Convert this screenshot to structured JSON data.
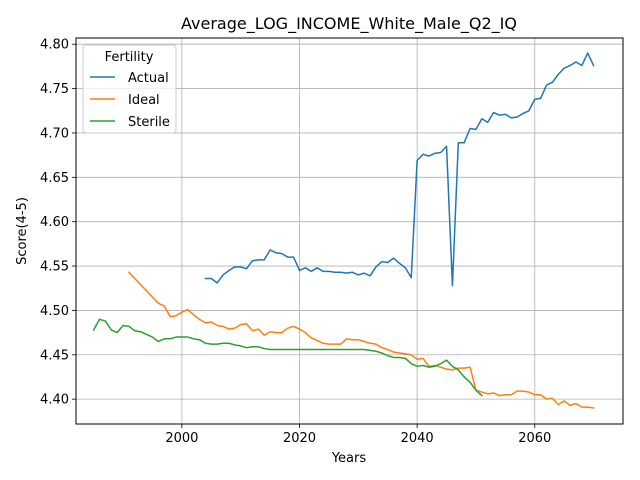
{
  "chart_data": {
    "type": "line",
    "title": "Average_LOG_INCOME_White_Male_Q2_IQ",
    "xlabel": "Years",
    "ylabel": "Score(4-5)",
    "xlim": [
      1982,
      2075
    ],
    "ylim": [
      4.372,
      4.807
    ],
    "xticks": [
      2000,
      2020,
      2040,
      2060
    ],
    "yticks": [
      4.4,
      4.45,
      4.5,
      4.55,
      4.6,
      4.65,
      4.7,
      4.75,
      4.8
    ],
    "ytick_labels": [
      "4.40",
      "4.45",
      "4.50",
      "4.55",
      "4.60",
      "4.65",
      "4.70",
      "4.75",
      "4.80"
    ],
    "grid": true,
    "legend": {
      "title": "Fertility",
      "position": "top-left"
    },
    "series": [
      {
        "name": "Actual",
        "color": "#1f77b4",
        "x": [
          2004,
          2005,
          2006,
          2007,
          2008,
          2009,
          2010,
          2011,
          2012,
          2013,
          2014,
          2015,
          2016,
          2017,
          2018,
          2019,
          2020,
          2021,
          2022,
          2023,
          2024,
          2025,
          2026,
          2027,
          2028,
          2029,
          2030,
          2031,
          2032,
          2033,
          2034,
          2035,
          2036,
          2037,
          2038,
          2039,
          2040,
          2041,
          2042,
          2043,
          2044,
          2045,
          2046,
          2047,
          2048,
          2049,
          2050,
          2051,
          2052,
          2053,
          2054,
          2055,
          2056,
          2057,
          2058,
          2059,
          2060,
          2061,
          2062,
          2063,
          2064,
          2065,
          2066,
          2067,
          2068,
          2069,
          2070
        ],
        "y": [
          4.536,
          4.536,
          4.531,
          4.54,
          4.545,
          4.549,
          4.549,
          4.547,
          4.556,
          4.557,
          4.557,
          4.568,
          4.565,
          4.564,
          4.56,
          4.56,
          4.545,
          4.548,
          4.544,
          4.548,
          4.544,
          4.544,
          4.543,
          4.543,
          4.542,
          4.543,
          4.54,
          4.542,
          4.539,
          4.549,
          4.555,
          4.554,
          4.559,
          4.553,
          4.548,
          4.537,
          4.669,
          4.676,
          4.674,
          4.677,
          4.678,
          4.685,
          4.528,
          4.689,
          4.689,
          4.705,
          4.704,
          4.716,
          4.712,
          4.723,
          4.72,
          4.721,
          4.717,
          4.718,
          4.722,
          4.725,
          4.738,
          4.739,
          4.754,
          4.757,
          4.766,
          4.773,
          4.776,
          4.78,
          4.776,
          4.79,
          4.776
        ]
      },
      {
        "name": "Ideal",
        "color": "#ff7f0e",
        "x": [
          1991,
          1992,
          1993,
          1994,
          1995,
          1996,
          1997,
          1998,
          1999,
          2000,
          2001,
          2002,
          2003,
          2004,
          2005,
          2006,
          2007,
          2008,
          2009,
          2010,
          2011,
          2012,
          2013,
          2014,
          2015,
          2016,
          2017,
          2018,
          2019,
          2020,
          2021,
          2022,
          2023,
          2024,
          2025,
          2026,
          2027,
          2028,
          2029,
          2030,
          2031,
          2032,
          2033,
          2034,
          2035,
          2036,
          2037,
          2038,
          2039,
          2040,
          2041,
          2042,
          2043,
          2044,
          2045,
          2046,
          2047,
          2048,
          2049,
          2050,
          2051,
          2052,
          2053,
          2054,
          2055,
          2056,
          2057,
          2058,
          2059,
          2060,
          2061,
          2062,
          2063,
          2064,
          2065,
          2066,
          2067,
          2068,
          2069,
          2070
        ],
        "y": [
          4.543,
          4.536,
          4.529,
          4.522,
          4.515,
          4.508,
          4.505,
          4.493,
          4.494,
          4.498,
          4.501,
          4.495,
          4.49,
          4.486,
          4.487,
          4.483,
          4.482,
          4.479,
          4.48,
          4.484,
          4.485,
          4.477,
          4.479,
          4.472,
          4.476,
          4.475,
          4.475,
          4.48,
          4.482,
          4.479,
          4.475,
          4.469,
          4.466,
          4.463,
          4.462,
          4.462,
          4.462,
          4.468,
          4.467,
          4.467,
          4.465,
          4.463,
          4.462,
          4.458,
          4.456,
          4.453,
          4.452,
          4.451,
          4.45,
          4.445,
          4.446,
          4.437,
          4.438,
          4.436,
          4.434,
          4.433,
          4.435,
          4.435,
          4.436,
          4.41,
          4.408,
          4.406,
          4.407,
          4.404,
          4.405,
          4.405,
          4.409,
          4.409,
          4.408,
          4.405,
          4.405,
          4.4,
          4.401,
          4.394,
          4.398,
          4.393,
          4.395,
          4.391,
          4.391,
          4.39
        ]
      },
      {
        "name": "Sterile",
        "color": "#2ca02c",
        "x": [
          1985,
          1986,
          1987,
          1988,
          1989,
          1990,
          1991,
          1992,
          1993,
          1994,
          1995,
          1996,
          1997,
          1998,
          1999,
          2000,
          2001,
          2002,
          2003,
          2004,
          2005,
          2006,
          2007,
          2008,
          2009,
          2010,
          2011,
          2012,
          2013,
          2014,
          2015,
          2016,
          2017,
          2018,
          2019,
          2020,
          2021,
          2022,
          2023,
          2024,
          2025,
          2026,
          2027,
          2028,
          2029,
          2030,
          2031,
          2032,
          2033,
          2034,
          2035,
          2036,
          2037,
          2038,
          2039,
          2040,
          2041,
          2042,
          2043,
          2044,
          2045,
          2046,
          2047,
          2048,
          2049,
          2050,
          2051
        ],
        "y": [
          4.478,
          4.49,
          4.488,
          4.478,
          4.475,
          4.483,
          4.482,
          4.477,
          4.476,
          4.473,
          4.47,
          4.465,
          4.468,
          4.468,
          4.47,
          4.47,
          4.47,
          4.468,
          4.467,
          4.463,
          4.462,
          4.462,
          4.463,
          4.463,
          4.461,
          4.46,
          4.458,
          4.459,
          4.459,
          4.457,
          4.456,
          4.456,
          4.456,
          4.456,
          4.456,
          4.456,
          4.456,
          4.456,
          4.456,
          4.456,
          4.456,
          4.456,
          4.456,
          4.456,
          4.456,
          4.456,
          4.456,
          4.455,
          4.454,
          4.452,
          4.449,
          4.447,
          4.447,
          4.446,
          4.44,
          4.437,
          4.438,
          4.436,
          4.437,
          4.44,
          4.444,
          4.437,
          4.433,
          4.425,
          4.419,
          4.41,
          4.404
        ]
      }
    ]
  }
}
